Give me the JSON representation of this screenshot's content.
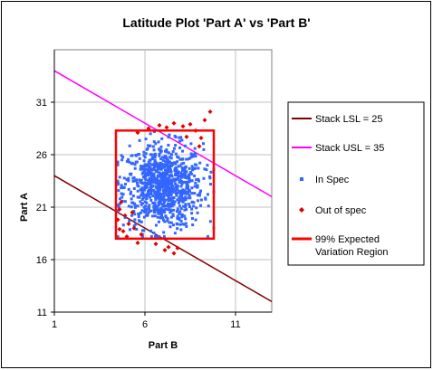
{
  "chart_data": {
    "type": "scatter",
    "title": "Latitude Plot 'Part A' vs 'Part B'",
    "xlabel": "Part B",
    "ylabel": "Part A",
    "xlim": [
      1,
      13
    ],
    "ylim": [
      11,
      36
    ],
    "xticks": [
      "1",
      "6",
      "11"
    ],
    "yticks": [
      "11",
      "16",
      "21",
      "26",
      "31"
    ],
    "grid": true,
    "legend_position": "right",
    "colors": {
      "lsl": "#800000",
      "usl": "#ff00ff",
      "in_spec": "#3366ff",
      "out_of_spec": "#e00000",
      "region": "#ff0000"
    },
    "series": [
      {
        "name": "Stack LSL = 25",
        "kind": "line",
        "x": [
          1,
          13
        ],
        "y": [
          24,
          12
        ]
      },
      {
        "name": "Stack USL = 35",
        "kind": "line",
        "x": [
          1,
          13
        ],
        "y": [
          34,
          22
        ]
      },
      {
        "name": "In Spec",
        "kind": "points",
        "count": 900,
        "x_mean": 7.0,
        "x_sd": 1.1,
        "y_mean": 23.0,
        "y_sd": 2.0,
        "x_range": [
          4.5,
          9.8
        ],
        "y_range": [
          18.2,
          28.2
        ]
      },
      {
        "name": "Out of spec",
        "kind": "points",
        "points": [
          [
            6.2,
            28.5
          ],
          [
            6.8,
            28.8
          ],
          [
            7.2,
            28.6
          ],
          [
            7.6,
            29.0
          ],
          [
            8.1,
            28.7
          ],
          [
            8.5,
            28.9
          ],
          [
            8.8,
            28.3
          ],
          [
            8.3,
            27.7
          ],
          [
            9.1,
            27.6
          ],
          [
            9.3,
            29.3
          ],
          [
            9.6,
            30.1
          ],
          [
            9.0,
            26.8
          ],
          [
            5.6,
            28.1
          ],
          [
            4.7,
            21.5
          ],
          [
            4.6,
            20.8
          ],
          [
            4.9,
            20.2
          ],
          [
            4.5,
            19.8
          ],
          [
            5.1,
            19.4
          ],
          [
            5.4,
            19.0
          ],
          [
            4.8,
            18.7
          ],
          [
            5.0,
            18.2
          ],
          [
            5.6,
            17.6
          ],
          [
            4.6,
            18.9
          ],
          [
            6.6,
            17.5
          ],
          [
            7.3,
            17.2
          ],
          [
            7.8,
            17.1
          ],
          [
            7.1,
            16.9
          ],
          [
            7.6,
            16.6
          ],
          [
            5.8,
            18.4
          ],
          [
            5.3,
            20.5
          ]
        ]
      },
      {
        "name": "99% Expected Variation Region",
        "kind": "rect",
        "x": [
          4.4,
          9.8
        ],
        "y": [
          18.0,
          28.3
        ]
      }
    ]
  }
}
